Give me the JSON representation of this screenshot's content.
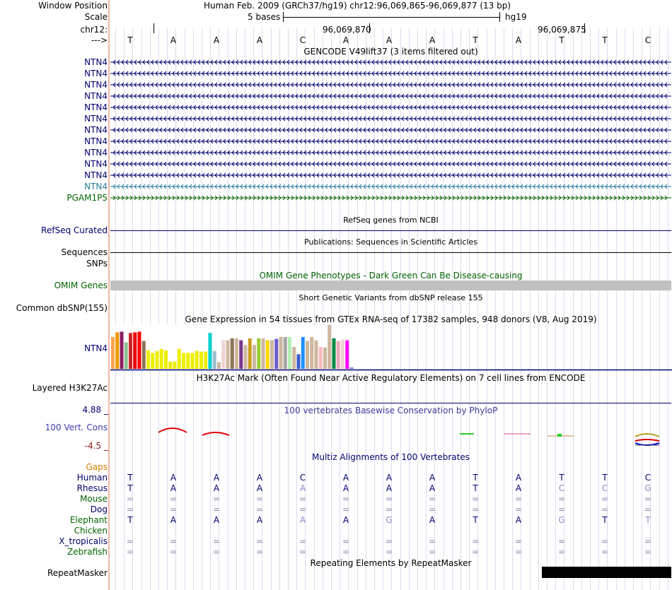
{
  "header": {
    "window_position_label": "Window Position",
    "window_position_value": "Human Feb. 2009 (GRCh37/hg19)   chr12:96,069,865-96,069,877 (13 bp)",
    "scale_label": "Scale",
    "scale_text": "5 bases",
    "scale_assembly": "hg19",
    "chrom_label": "chr12:",
    "coord_1": "96,069,870",
    "coord_2": "96,069,875",
    "strand_label": "--->"
  },
  "sequence": [
    "T",
    "A",
    "A",
    "A",
    "C",
    "A",
    "A",
    "A",
    "T",
    "A",
    "T",
    "T",
    "C"
  ],
  "gencode": {
    "title": "GENCODE V49lift37 (3 items filtered out)",
    "items": [
      "NTN4",
      "NTN4",
      "NTN4",
      "NTN4",
      "NTN4",
      "NTN4",
      "NTN4",
      "NTN4",
      "NTN4",
      "NTN4",
      "NTN4",
      "NTN4",
      "PGAM1P5"
    ]
  },
  "refseq": {
    "title": "RefSeq genes from NCBI",
    "label": "RefSeq Curated"
  },
  "publications": {
    "title": "Publications: Sequences in Scientific Articles",
    "label": "Sequences"
  },
  "snps_label": "SNPs",
  "omim": {
    "title": "OMIM Gene Phenotypes - Dark Green Can Be Disease-causing",
    "label": "OMIM Genes"
  },
  "dbsnp": {
    "title": "Short Genetic Variants from dbSNP release 155",
    "label": "Common dbSNP(155)"
  },
  "gtex": {
    "title": "Gene Expression in 54 tissues from GTEx RNA-seq of 17382 samples, 948 donors (V8, Aug 2019)",
    "label": "NTN4",
    "values": [
      48,
      55,
      56,
      40,
      54,
      55,
      56,
      42,
      28,
      24,
      27,
      30,
      28,
      11,
      11,
      30,
      24,
      24,
      24,
      27,
      26,
      26,
      54,
      27,
      10,
      43,
      43,
      46,
      46,
      43,
      36,
      46,
      36,
      46,
      46,
      43,
      43,
      45,
      48,
      48,
      48,
      33,
      22,
      48,
      42,
      48,
      43,
      33,
      32,
      66,
      46,
      42,
      44,
      43,
      2
    ],
    "colors": [
      "#FFA54F",
      "#EE9A00",
      "#8B1C62",
      "#8FBC8F",
      "#CD2626",
      "#EE0000",
      "#FF0000",
      "#8B7355",
      "#EEEE00",
      "#EEEE00",
      "#EEEE00",
      "#EEEE00",
      "#EEEE00",
      "#EEEE00",
      "#EEEE00",
      "#EEEE00",
      "#EEEE00",
      "#EEEE00",
      "#EEEE00",
      "#EEEE00",
      "#EEEE00",
      "#EEEE00",
      "#00CED1",
      "#9AC0CD",
      "#CDB79E",
      "#EED5D2",
      "#CDB79E",
      "#8B7355",
      "#CDB79E",
      "#7A378B",
      "#CDB79E",
      "#CD9B1D",
      "#CDB79E",
      "#9ACD32",
      "#CDB79E",
      "#FFD700",
      "#CDB79E",
      "#6959CD",
      "#CDB79E",
      "#A6A6A6",
      "#B4EEB4",
      "#CDB79E",
      "#3A5FCD",
      "#1E90FF",
      "#CDB79E",
      "#CDB79E",
      "#CDB79E",
      "#FFB6C1",
      "#CDB79E",
      "#CDB79E",
      "#008B45",
      "#EEA9B8",
      "#EED5D2",
      "#FF00FF",
      "#7A67EE"
    ]
  },
  "h3k27ac": {
    "title": "H3K27Ac Mark (Often Found Near Active Regulatory Elements) on 7 cell lines from ENCODE",
    "label": "Layered H3K27Ac"
  },
  "phylop": {
    "title": "100 vertebrates Basewise Conservation by PhyloP",
    "label": "100 Vert. Cons",
    "max_label": "4.88 _",
    "min_label": "-4.5 _"
  },
  "multiz": {
    "title": "Multiz Alignments of 100 Vertebrates",
    "gaps_label": "Gaps",
    "species": [
      {
        "name": "Human",
        "bases": [
          "T",
          "A",
          "A",
          "A",
          "C",
          "A",
          "A",
          "A",
          "T",
          "A",
          "T",
          "T",
          "C"
        ],
        "color": "#00006e"
      },
      {
        "name": "Rhesus",
        "bases": [
          "T",
          "A",
          "A",
          "A",
          "A",
          "A",
          "A",
          "A",
          "T",
          "A",
          "C",
          "C",
          "G"
        ],
        "color": "#00006e"
      },
      {
        "name": "Mouse",
        "bases": [
          "=",
          "=",
          "=",
          "=",
          "=",
          "=",
          "=",
          "=",
          "=",
          "=",
          "=",
          "=",
          "="
        ],
        "color": "#006400"
      },
      {
        "name": "Dog",
        "bases": [
          "=",
          "=",
          "=",
          "=",
          "=",
          "=",
          "=",
          "=",
          "=",
          "=",
          "=",
          "=",
          "="
        ],
        "color": "#00006e"
      },
      {
        "name": "Elephant",
        "bases": [
          "T",
          "A",
          "A",
          "A",
          "A",
          "A",
          "G",
          "A",
          "T",
          "A",
          "G",
          "T",
          "T"
        ],
        "color": "#006400"
      },
      {
        "name": "Chicken",
        "bases": [
          "",
          "",
          "",
          "",
          "",
          "",
          "",
          "",
          "",
          "",
          "",
          "",
          ""
        ],
        "color": "#006400"
      },
      {
        "name": "X_tropicalis",
        "bases": [
          "=",
          "=",
          "=",
          "=",
          "=",
          "=",
          "=",
          "=",
          "=",
          "=",
          "=",
          "=",
          "="
        ],
        "color": "#00006e"
      },
      {
        "name": "Zebrafish",
        "bases": [
          "=",
          "=",
          "=",
          "=",
          "=",
          "=",
          "=",
          "=",
          "=",
          "=",
          "=",
          "=",
          "="
        ],
        "color": "#006400"
      }
    ],
    "faded": {
      "Rhesus": [
        4,
        10,
        11,
        12
      ],
      "Elephant": [
        4,
        6,
        10,
        12
      ]
    }
  },
  "repeatmasker": {
    "title": "Repeating Elements by RepeatMasker",
    "label": "RepeatMasker"
  }
}
